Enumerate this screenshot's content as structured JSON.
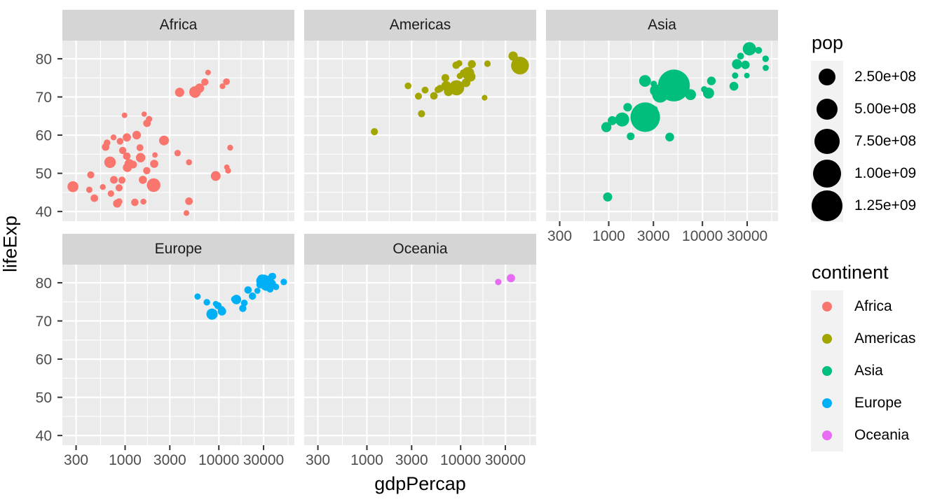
{
  "figure": {
    "xlabel": "gdpPercap",
    "ylabel": "lifeExp",
    "x_tick_labels": [
      "300",
      "1000",
      "3000",
      "10000",
      "30000"
    ],
    "y_tick_labels": [
      "40",
      "50",
      "60",
      "70",
      "80"
    ]
  },
  "theme": {
    "panel_bg": "#EBEBEB",
    "strip_bg": "#D5D5D5",
    "grid_color": "#FFFFFF",
    "tick_color": "#333333",
    "axis_text_color": "#4D4D4D"
  },
  "legend": {
    "pop": {
      "title": "pop",
      "entries": [
        {
          "label": "2.50e+08",
          "value": 250000000
        },
        {
          "label": "5.00e+08",
          "value": 500000000
        },
        {
          "label": "7.50e+08",
          "value": 750000000
        },
        {
          "label": "1.00e+09",
          "value": 1000000000
        },
        {
          "label": "1.25e+09",
          "value": 1250000000
        }
      ]
    },
    "continent": {
      "title": "continent",
      "entries": [
        {
          "label": "Africa",
          "color": "#F8766D"
        },
        {
          "label": "Americas",
          "color": "#A3A500"
        },
        {
          "label": "Asia",
          "color": "#00BF7D"
        },
        {
          "label": "Europe",
          "color": "#00B0F6"
        },
        {
          "label": "Oceania",
          "color": "#E76BF3"
        }
      ]
    }
  },
  "chart_data": {
    "type": "scatter",
    "x_var": "gdpPercap",
    "y_var": "lifeExp",
    "size_var": "pop",
    "color_var": "continent",
    "x_scale": "log10",
    "x_breaks": [
      300,
      1000,
      3000,
      10000,
      30000
    ],
    "x_minor_breaks": [
      547.7,
      1732.1,
      5477.2,
      17320.5,
      54772.3
    ],
    "y_breaks": [
      40,
      50,
      60,
      70,
      80
    ],
    "y_minor_breaks": [
      45,
      55,
      65,
      75
    ],
    "x_domain_log10": [
      2.330869,
      4.805891
    ],
    "y_domain": [
      37.4635,
      84.7525
    ],
    "facets": [
      {
        "label": "Africa",
        "color": "#F8766D",
        "points": [
          [
            6223,
            72.3,
            33333000
          ],
          [
            4797,
            42.7,
            12421000
          ],
          [
            1441,
            56.7,
            8078000
          ],
          [
            12570,
            50.7,
            1639000
          ],
          [
            1217,
            52.3,
            14326000
          ],
          [
            430,
            49.6,
            8391000
          ],
          [
            2042,
            52.5,
            17696000
          ],
          [
            706,
            44.7,
            4369000
          ],
          [
            1704,
            50.7,
            10239000
          ],
          [
            986,
            65.2,
            711000
          ],
          [
            278,
            46.5,
            64607000
          ],
          [
            3633,
            55.3,
            3801000
          ],
          [
            1545,
            48.3,
            18013000
          ],
          [
            2082,
            54.8,
            496000
          ],
          [
            5581,
            71.3,
            80265000
          ],
          [
            12154,
            51.6,
            551000
          ],
          [
            641,
            58.0,
            4907000
          ],
          [
            691,
            52.9,
            76512000
          ],
          [
            13206,
            56.7,
            1455000
          ],
          [
            753,
            59.4,
            1688000
          ],
          [
            1328,
            60.0,
            22873000
          ],
          [
            943,
            56.0,
            9948000
          ],
          [
            579,
            46.4,
            1472000
          ],
          [
            1463,
            54.1,
            35610000
          ],
          [
            1569,
            42.6,
            2013000
          ],
          [
            415,
            45.7,
            3194000
          ],
          [
            12057,
            74.0,
            6037000
          ],
          [
            1045,
            59.4,
            19168000
          ],
          [
            759,
            48.3,
            13327000
          ],
          [
            1043,
            54.5,
            12032000
          ],
          [
            1803,
            64.2,
            3270000
          ],
          [
            10957,
            72.8,
            1251000
          ],
          [
            3820,
            71.2,
            33757000
          ],
          [
            824,
            42.1,
            19952000
          ],
          [
            4811,
            52.9,
            2055000
          ],
          [
            620,
            56.9,
            12895000
          ],
          [
            2014,
            46.9,
            135031000
          ],
          [
            7670,
            76.4,
            798000
          ],
          [
            863,
            46.2,
            8861000
          ],
          [
            1598,
            65.5,
            200000
          ],
          [
            1712,
            63.1,
            12267000
          ],
          [
            863,
            42.6,
            6145000
          ],
          [
            926,
            48.2,
            9119000
          ],
          [
            9270,
            49.3,
            43998000
          ],
          [
            2602,
            58.6,
            42293000
          ],
          [
            4513,
            39.6,
            1133000
          ],
          [
            1107,
            52.5,
            38140000
          ],
          [
            883,
            58.4,
            5702000
          ],
          [
            7093,
            73.9,
            10276000
          ],
          [
            1056,
            51.5,
            29170000
          ],
          [
            1271,
            42.4,
            11746000
          ],
          [
            470,
            43.5,
            12311000
          ]
        ]
      },
      {
        "label": "Americas",
        "color": "#A3A500",
        "points": [
          [
            12779,
            75.3,
            40302000
          ],
          [
            3822,
            65.6,
            9119000
          ],
          [
            9066,
            72.4,
            190011000
          ],
          [
            36319,
            80.7,
            33390000
          ],
          [
            13172,
            78.6,
            16285000
          ],
          [
            7007,
            72.9,
            44228000
          ],
          [
            9645,
            78.8,
            4134000
          ],
          [
            8948,
            78.3,
            11417000
          ],
          [
            6025,
            72.2,
            9320000
          ],
          [
            6873,
            75.0,
            13756000
          ],
          [
            5728,
            71.9,
            6940000
          ],
          [
            5186,
            70.3,
            12573000
          ],
          [
            1202,
            60.9,
            8503000
          ],
          [
            3548,
            70.2,
            7484000
          ],
          [
            7321,
            72.6,
            2780000
          ],
          [
            11978,
            76.2,
            108701000
          ],
          [
            2749,
            72.9,
            5675000
          ],
          [
            9809,
            75.5,
            3242000
          ],
          [
            4173,
            71.8,
            6667000
          ],
          [
            7409,
            71.4,
            28675000
          ],
          [
            19329,
            78.7,
            3942000
          ],
          [
            18009,
            69.8,
            1057000
          ],
          [
            42952,
            78.2,
            301140000
          ],
          [
            10611,
            76.4,
            3447000
          ],
          [
            11416,
            73.7,
            26085000
          ]
        ]
      },
      {
        "label": "Asia",
        "color": "#00BF7D",
        "points": [
          [
            975,
            43.8,
            31890000
          ],
          [
            29796,
            75.6,
            709000
          ],
          [
            1391,
            64.1,
            150448000
          ],
          [
            1714,
            59.7,
            14132000
          ],
          [
            4959,
            73.0,
            1318683000
          ],
          [
            39725,
            82.2,
            6980000
          ],
          [
            2452,
            64.7,
            1110396000
          ],
          [
            3541,
            70.6,
            223547000
          ],
          [
            11606,
            71.0,
            69454000
          ],
          [
            4471,
            59.5,
            27500000
          ],
          [
            25523,
            80.7,
            6427000
          ],
          [
            31656,
            82.6,
            127468000
          ],
          [
            4519,
            72.5,
            6053000
          ],
          [
            1593,
            67.3,
            23302000
          ],
          [
            23348,
            78.6,
            49045000
          ],
          [
            47307,
            77.6,
            2506000
          ],
          [
            10461,
            72.0,
            3921000
          ],
          [
            12452,
            74.2,
            24821000
          ],
          [
            3096,
            66.8,
            2874000
          ],
          [
            944,
            62.1,
            47762000
          ],
          [
            1091,
            63.8,
            28902000
          ],
          [
            22316,
            75.6,
            3205000
          ],
          [
            2606,
            65.5,
            169271000
          ],
          [
            3190,
            71.7,
            91077000
          ],
          [
            21655,
            72.8,
            27601000
          ],
          [
            47143,
            80.0,
            4553000
          ],
          [
            3970,
            72.4,
            20378000
          ],
          [
            4185,
            74.1,
            19315000
          ],
          [
            28718,
            78.4,
            23174000
          ],
          [
            7458,
            70.6,
            65068000
          ],
          [
            2442,
            74.2,
            85262000
          ],
          [
            3025,
            73.4,
            4018000
          ],
          [
            2281,
            62.7,
            22212000
          ]
        ]
      },
      {
        "label": "Europe",
        "color": "#00B0F6",
        "points": [
          [
            5937,
            76.4,
            3601000
          ],
          [
            36126,
            79.8,
            8200000
          ],
          [
            33693,
            79.4,
            10392000
          ],
          [
            7446,
            74.9,
            4552000
          ],
          [
            10681,
            73.0,
            7323000
          ],
          [
            14619,
            75.7,
            4493000
          ],
          [
            22833,
            76.5,
            10229000
          ],
          [
            35278,
            78.3,
            5468000
          ],
          [
            33207,
            79.3,
            5238000
          ],
          [
            30470,
            80.7,
            61084000
          ],
          [
            32170,
            79.4,
            82401000
          ],
          [
            27538,
            79.5,
            10706000
          ],
          [
            18009,
            73.3,
            9956000
          ],
          [
            36181,
            81.8,
            302000
          ],
          [
            40676,
            78.9,
            4109000
          ],
          [
            28570,
            80.5,
            58148000
          ],
          [
            9254,
            74.5,
            685000
          ],
          [
            36798,
            79.8,
            16571000
          ],
          [
            49357,
            80.2,
            4628000
          ],
          [
            15390,
            75.6,
            38518000
          ],
          [
            20510,
            78.1,
            10643000
          ],
          [
            10808,
            72.5,
            22276000
          ],
          [
            9787,
            74.0,
            10150000
          ],
          [
            18678,
            74.7,
            5448000
          ],
          [
            25768,
            77.9,
            2009000
          ],
          [
            28821,
            80.9,
            40448000
          ],
          [
            33860,
            80.9,
            9031000
          ],
          [
            37506,
            81.7,
            7555000
          ],
          [
            8458,
            71.8,
            71159000
          ],
          [
            33203,
            79.4,
            60776000
          ]
        ]
      },
      {
        "label": "Oceania",
        "color": "#E76BF3",
        "points": [
          [
            34435,
            81.2,
            20434000
          ],
          [
            25185,
            80.2,
            4116000
          ]
        ]
      }
    ]
  }
}
